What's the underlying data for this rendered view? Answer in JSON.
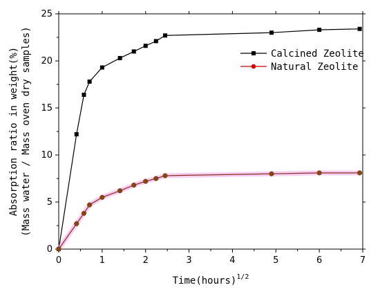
{
  "chart_data": {
    "type": "line",
    "xlabel": "Time(hours)",
    "xlabel_sup": "1/2",
    "ylabel_line1": "Absorption ratio in weight(%)",
    "ylabel_line2": "(Mass water / Mass oven dry samples)",
    "xlim": [
      0,
      7
    ],
    "ylim": [
      0,
      25
    ],
    "xticks": [
      0,
      1,
      2,
      3,
      4,
      5,
      6,
      7
    ],
    "yticks": [
      0,
      5,
      10,
      15,
      20,
      25
    ],
    "grid": false,
    "legend_position": "top-right",
    "series": [
      {
        "name": "Calcined Zeolite",
        "color": "#000000",
        "marker": "square",
        "x": [
          0,
          0.41,
          0.58,
          0.71,
          1.0,
          1.41,
          1.73,
          2.0,
          2.24,
          2.45,
          4.9,
          6.0,
          6.93
        ],
        "y": [
          0,
          12.2,
          16.4,
          17.8,
          19.3,
          20.3,
          21.0,
          21.6,
          22.1,
          22.7,
          23.0,
          23.3,
          23.4
        ]
      },
      {
        "name": "Natural Zeolite",
        "color": "#cc0000",
        "marker": "circle",
        "x": [
          0,
          0.41,
          0.58,
          0.71,
          1.0,
          1.41,
          1.73,
          2.0,
          2.24,
          2.45,
          4.9,
          6.0,
          6.93
        ],
        "y": [
          0,
          2.7,
          3.8,
          4.7,
          5.5,
          6.2,
          6.8,
          7.2,
          7.5,
          7.8,
          8.0,
          8.1,
          8.1
        ]
      }
    ]
  }
}
